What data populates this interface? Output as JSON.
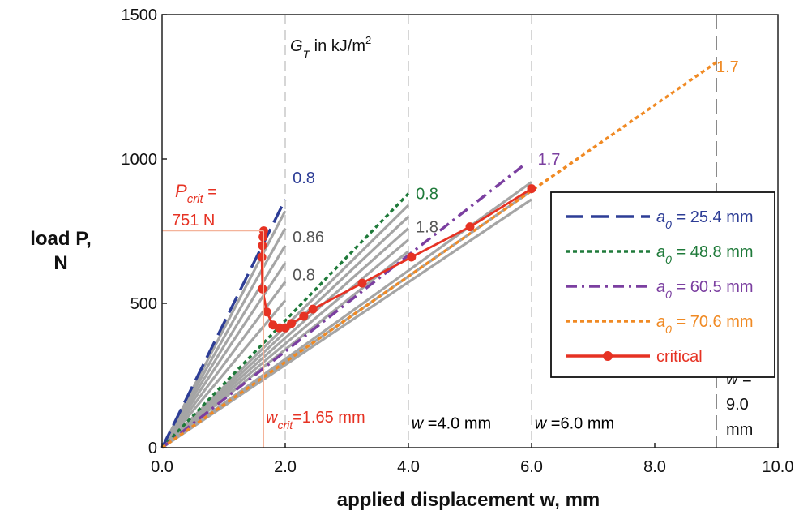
{
  "chart_data": {
    "type": "line",
    "xlabel": "applied displacement w, mm",
    "ylabel_line1": "load P,",
    "ylabel_line2": "N",
    "xlim": [
      0,
      10
    ],
    "ylim": [
      0,
      1500
    ],
    "xticks": [
      "0.0",
      "2.0",
      "4.0",
      "6.0",
      "8.0",
      "10.0"
    ],
    "xtick_values": [
      0,
      2,
      4,
      6,
      8,
      10
    ],
    "yticks": [
      "0",
      "500",
      "1000",
      "1500"
    ],
    "ytick_values": [
      0,
      500,
      1000,
      1500
    ],
    "colors": {
      "blue": "#2d3d96",
      "green": "#1f7a3a",
      "purple": "#7b3fa0",
      "orange": "#f08a24",
      "red": "#e63223",
      "gray": "#a5a5a5",
      "dark": "#555555"
    },
    "series": [
      {
        "name": "a0 = 25.4 mm",
        "color": "blue",
        "dash": "dash",
        "x": [
          0,
          2.0
        ],
        "y": [
          0,
          860
        ]
      },
      {
        "name": "a0 = 48.8 mm",
        "color": "green",
        "dash": "dot",
        "x": [
          0,
          4.0
        ],
        "y": [
          0,
          880
        ]
      },
      {
        "name": "a0 = 60.5 mm",
        "color": "purple",
        "dash": "dashdot",
        "x": [
          0,
          5.85
        ],
        "y": [
          0,
          975
        ]
      },
      {
        "name": "a0 = 70.6 mm",
        "color": "orange",
        "dash": "dot",
        "x": [
          0,
          9.0
        ],
        "y": [
          0,
          1335
        ]
      },
      {
        "name": "critical",
        "color": "red",
        "dash": "solid",
        "x": [
          1.65,
          1.64,
          1.63,
          1.62,
          1.63,
          1.7,
          1.8,
          1.9,
          2.0,
          2.1,
          2.3,
          2.45,
          3.25,
          4.05,
          5.0,
          6.0
        ],
        "y": [
          751,
          730,
          700,
          660,
          550,
          470,
          425,
          415,
          415,
          430,
          455,
          480,
          570,
          660,
          765,
          897
        ]
      }
    ],
    "gray_curves": [
      {
        "x": [
          0,
          2.0
        ],
        "y": [
          0,
          820
        ]
      },
      {
        "x": [
          0,
          2.0
        ],
        "y": [
          0,
          760
        ]
      },
      {
        "x": [
          0,
          2.0
        ],
        "y": [
          0,
          700
        ]
      },
      {
        "x": [
          0,
          2.0
        ],
        "y": [
          0,
          640
        ]
      },
      {
        "x": [
          0,
          2.0
        ],
        "y": [
          0,
          575
        ]
      },
      {
        "x": [
          0,
          2.0
        ],
        "y": [
          0,
          510
        ]
      },
      {
        "x": [
          0,
          4.0
        ],
        "y": [
          0,
          840
        ]
      },
      {
        "x": [
          0,
          4.0
        ],
        "y": [
          0,
          800
        ]
      },
      {
        "x": [
          0,
          4.0
        ],
        "y": [
          0,
          760
        ]
      },
      {
        "x": [
          0,
          4.0
        ],
        "y": [
          0,
          720
        ]
      },
      {
        "x": [
          0,
          4.0
        ],
        "y": [
          0,
          680
        ]
      },
      {
        "x": [
          0,
          6.0
        ],
        "y": [
          0,
          920
        ]
      },
      {
        "x": [
          0,
          6.0
        ],
        "y": [
          0,
          890
        ]
      },
      {
        "x": [
          0,
          6.0
        ],
        "y": [
          0,
          860
        ]
      }
    ],
    "vlines": [
      {
        "x": 2.0,
        "style": "light"
      },
      {
        "x": 4.0,
        "style": "light"
      },
      {
        "x": 6.0,
        "style": "light"
      },
      {
        "x": 9.0,
        "style": "dark"
      }
    ],
    "critical_marker": {
      "w": 1.65,
      "P": 751
    },
    "annotations": [
      {
        "text": "0.8",
        "color": "blue",
        "x": 2.12,
        "y": 935
      },
      {
        "text": "0.86",
        "color": "dark",
        "x": 2.12,
        "y": 730
      },
      {
        "text": "0.8",
        "color": "dark",
        "x": 2.12,
        "y": 600
      },
      {
        "text": "0.8",
        "color": "green",
        "x": 4.12,
        "y": 880
      },
      {
        "text": "1.8",
        "color": "dark",
        "x": 4.12,
        "y": 765
      },
      {
        "text": "1.7",
        "color": "purple",
        "x": 6.1,
        "y": 1000
      },
      {
        "text": "1.7",
        "color": "orange",
        "x": 9.0,
        "y": 1320
      },
      {
        "text": "w =4.0 mm",
        "color": "black",
        "x": 4.05,
        "y": 85
      },
      {
        "text": "w =6.0 mm",
        "color": "black",
        "x": 6.05,
        "y": 85
      }
    ],
    "gt_label": {
      "main": "G",
      "sub": "T",
      "rest": " in kJ/m",
      "sup": "2"
    },
    "pcrit_label": {
      "main": "P",
      "sub": "crit",
      "eq": " =",
      "value": "751 N"
    },
    "wcrit_label": {
      "main": "w",
      "sub": "crit",
      "value": "=1.65 mm"
    },
    "w9_label": [
      "w =",
      "9.0",
      "mm"
    ],
    "legend": {
      "location": "right",
      "entries": [
        {
          "prefix": "a",
          "sub": "0",
          "text": " = 25.4 mm",
          "color": "blue",
          "dash": "dash"
        },
        {
          "prefix": "a",
          "sub": "0",
          "text": " = 48.8 mm",
          "color": "green",
          "dash": "dot"
        },
        {
          "prefix": "a",
          "sub": "0",
          "text": " = 60.5 mm",
          "color": "purple",
          "dash": "dashdot"
        },
        {
          "prefix": "a",
          "sub": "0",
          "text": " = 70.6 mm",
          "color": "orange",
          "dash": "dot"
        },
        {
          "prefix": "",
          "sub": "",
          "text": "critical",
          "color": "red",
          "dash": "solid",
          "marker": true
        }
      ]
    }
  }
}
